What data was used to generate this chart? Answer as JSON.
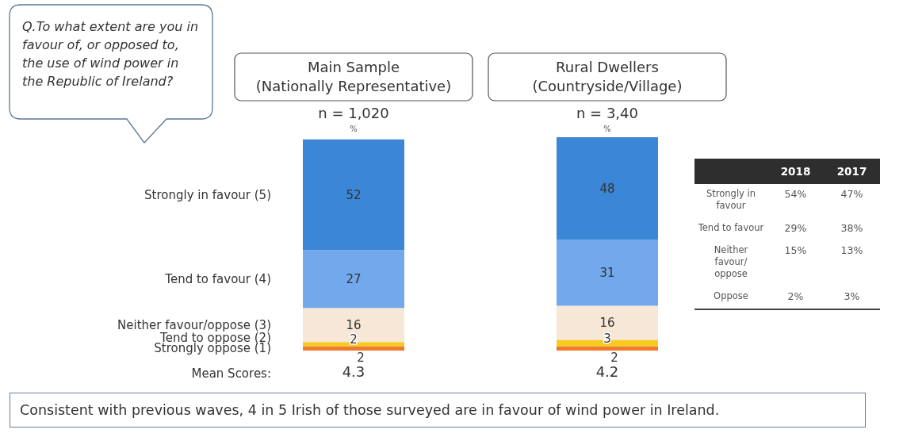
{
  "chart_data": [
    {
      "type": "bar",
      "stacked": true,
      "title": "Q.To what extent are you in favour of, or opposed to, the use of wind power in the Republic of Ireland?",
      "categories": [
        "Main Sample\n(Nationally Representative)",
        "Rural Dwellers\n(Countryside/Village)"
      ],
      "series": [
        {
          "name": "Strongly oppose (1)",
          "color": "#ee7a2c",
          "values": [
            2,
            2
          ]
        },
        {
          "name": "Tend to oppose (2)",
          "color": "#f8c91f",
          "values": [
            2,
            3
          ]
        },
        {
          "name": "Neither favour/oppose (3)",
          "color": "#f6e7d6",
          "values": [
            16,
            16
          ]
        },
        {
          "name": "Tend to favour (4)",
          "color": "#72a9ec",
          "values": [
            27,
            31
          ]
        },
        {
          "name": "Strongly in favour (5)",
          "color": "#3b86d6",
          "values": [
            52,
            48
          ]
        }
      ],
      "data_labels": true,
      "annotations": [
        "n = 1,020",
        "n = 3,40",
        "%",
        "%",
        "Mean Scores:",
        "4.3",
        "4.2",
        "Consistent with previous waves, 4 in 5 Irish of those surveyed are in favour of wind power in Ireland."
      ]
    },
    {
      "type": "other",
      "categories": [
        "Strongly in favour",
        "Tend to favour",
        "Neither favour/ oppose",
        "Oppose"
      ],
      "series": [
        {
          "name": "2018",
          "values": [
            54,
            29,
            15,
            2
          ],
          "value_labels": [
            "54%",
            "29%",
            "15%",
            "2%"
          ]
        },
        {
          "name": "2017",
          "values": [
            47,
            38,
            13,
            3
          ],
          "value_labels": [
            "47%",
            "38%",
            "13%",
            "3%"
          ]
        }
      ]
    }
  ]
}
